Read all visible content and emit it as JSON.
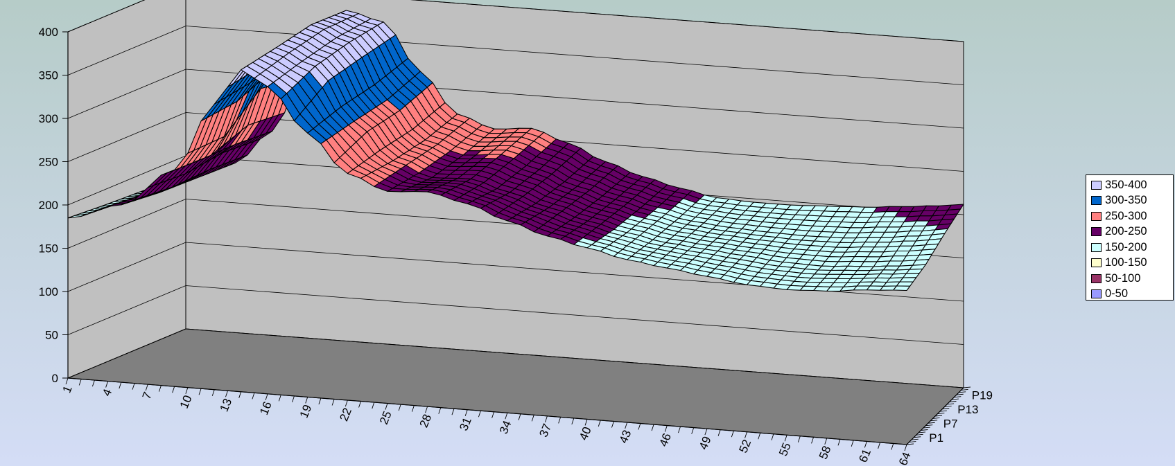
{
  "colors": {
    "background_top": "#b6ccc8",
    "background_bottom": "#d4ddf6",
    "back_wall": "#c0c0c0",
    "floor": "#808080",
    "band_colors": {
      "0-50": "#9999ff",
      "50-100": "#993366",
      "100-150": "#ffffcc",
      "150-200": "#ccffff",
      "200-250": "#660066",
      "250-300": "#ff8080",
      "300-350": "#0066cc",
      "350-400": "#ccccff"
    }
  },
  "chart_data": {
    "type": "surface-3d",
    "title": "",
    "zlim": [
      0,
      400
    ],
    "z_ticks": [
      "0",
      "50",
      "100",
      "150",
      "200",
      "250",
      "300",
      "350",
      "400"
    ],
    "x_ticks": [
      "1",
      "4",
      "7",
      "10",
      "13",
      "16",
      "19",
      "22",
      "25",
      "28",
      "31",
      "34",
      "37",
      "40",
      "43",
      "46",
      "49",
      "52",
      "55",
      "58",
      "61",
      "64"
    ],
    "depth_ticks": [
      "P1",
      "P7",
      "P13",
      "P19"
    ],
    "grid": true,
    "legend_position": "right",
    "legend": [
      "350-400",
      "300-350",
      "250-300",
      "200-250",
      "150-200",
      "100-150",
      "50-100",
      "0-50"
    ],
    "series_curves": [
      {
        "depth": "P1",
        "values": [
          [
            1,
            185
          ],
          [
            5,
            205
          ],
          [
            9,
            250
          ],
          [
            12,
            330
          ],
          [
            14,
            372
          ],
          [
            16,
            355
          ],
          [
            19,
            305
          ],
          [
            22,
            262
          ],
          [
            25,
            245
          ],
          [
            28,
            248
          ],
          [
            31,
            238
          ],
          [
            34,
            222
          ],
          [
            37,
            208
          ],
          [
            40,
            198
          ],
          [
            43,
            188
          ],
          [
            46,
            182
          ],
          [
            49,
            176
          ],
          [
            52,
            170
          ],
          [
            55,
            168
          ],
          [
            58,
            170
          ],
          [
            61,
            175
          ],
          [
            64,
            178
          ]
        ]
      },
      {
        "depth": "P7",
        "values": [
          [
            1,
            182
          ],
          [
            5,
            200
          ],
          [
            9,
            248
          ],
          [
            12,
            335
          ],
          [
            14,
            378
          ],
          [
            17,
            360
          ],
          [
            20,
            300
          ],
          [
            23,
            258
          ],
          [
            26,
            242
          ],
          [
            29,
            244
          ],
          [
            32,
            232
          ],
          [
            35,
            218
          ],
          [
            38,
            206
          ],
          [
            41,
            196
          ],
          [
            44,
            188
          ],
          [
            47,
            184
          ],
          [
            50,
            180
          ],
          [
            53,
            176
          ],
          [
            56,
            175
          ],
          [
            59,
            178
          ],
          [
            62,
            182
          ],
          [
            64,
            186
          ]
        ]
      },
      {
        "depth": "P13",
        "values": [
          [
            1,
            180
          ],
          [
            5,
            198
          ],
          [
            8,
            240
          ],
          [
            11,
            330
          ],
          [
            14,
            385
          ],
          [
            17,
            368
          ],
          [
            20,
            305
          ],
          [
            23,
            262
          ],
          [
            26,
            248
          ],
          [
            29,
            252
          ],
          [
            32,
            238
          ],
          [
            35,
            222
          ],
          [
            38,
            210
          ],
          [
            41,
            200
          ],
          [
            44,
            192
          ],
          [
            47,
            188
          ],
          [
            50,
            186
          ],
          [
            53,
            185
          ],
          [
            56,
            186
          ],
          [
            59,
            190
          ],
          [
            62,
            195
          ],
          [
            64,
            200
          ]
        ]
      },
      {
        "depth": "P19",
        "values": [
          [
            1,
            178
          ],
          [
            5,
            196
          ],
          [
            8,
            236
          ],
          [
            11,
            322
          ],
          [
            14,
            382
          ],
          [
            17,
            372
          ],
          [
            20,
            318
          ],
          [
            23,
            272
          ],
          [
            26,
            258
          ],
          [
            29,
            262
          ],
          [
            32,
            248
          ],
          [
            35,
            230
          ],
          [
            38,
            216
          ],
          [
            41,
            206
          ],
          [
            44,
            198
          ],
          [
            47,
            196
          ],
          [
            50,
            196
          ],
          [
            53,
            198
          ],
          [
            56,
            200
          ],
          [
            59,
            204
          ],
          [
            62,
            208
          ],
          [
            64,
            212
          ]
        ]
      }
    ]
  }
}
